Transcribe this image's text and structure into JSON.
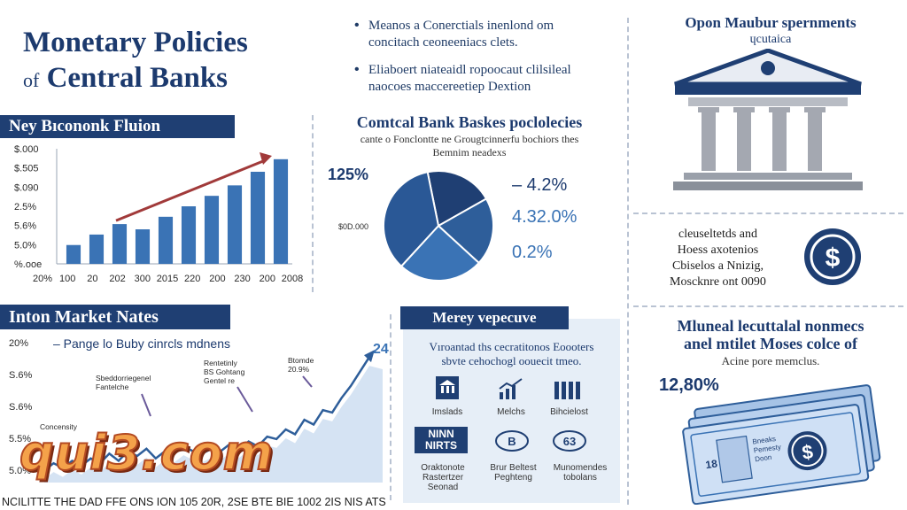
{
  "title": {
    "line1": "Monetary Policies",
    "line2_prefix": "of",
    "line2": "Central Banks"
  },
  "bullets": [
    {
      "line1": "Meanos a Conerctials inenlond om",
      "line2": "concitach ceoneeniacs clets."
    },
    {
      "line1": "Eliaboert niateaidl ropoocaut clilsileal",
      "line2": "naocoes maccereetiep Dextion"
    }
  ],
  "panels": {
    "key_economic": "Ney Bıcononk Fluion",
    "market_rates": "Inton Market Nates",
    "money": "Merey vepecuve",
    "central_policies": "Comtcal Bank Baskes poclolecies",
    "central_sub1": "cante o Fonclontte ne Grougtcinnerfu bochiors thes",
    "central_sub2": "Bemnim neadexs",
    "opon_title1": "Opon Maubur spernments",
    "opon_title2": "ɥcutaica",
    "money_text1": "Vıroantad ths cecratitonos Eoooters",
    "money_text2": "sbvte cehochogl oouecit tmeo.",
    "mlun1": "Mluneal lecuttalal nonmecs",
    "mlun2": "anel mtilet Moses colce of",
    "mlun3": "Acine pore memclus.",
    "stat_12_80": "12,80%",
    "ds1": "cleuseltetds and",
    "ds2": "Hoess axotenios",
    "ds3": "Cbiselos a Nnizig,",
    "ds4": "Moscknre ont 0090"
  },
  "icons": {
    "items": [
      {
        "name": "bank-icon",
        "label": "Imslads"
      },
      {
        "name": "growth-chart-icon",
        "label": "Melchs"
      },
      {
        "name": "bar-chart-icon",
        "label": "Bihcielost"
      },
      {
        "name": "box-label",
        "label": "NINN NIRTS"
      },
      {
        "name": "eye-icon-1",
        "label": "B"
      },
      {
        "name": "eye-icon-2",
        "label": "63"
      }
    ],
    "bottom_labels": [
      {
        "l1": "Oraktonote",
        "l2": "Rastertzer",
        "l3": "Seonad"
      },
      {
        "l1": "Brur Beltest",
        "l2": "Peghteng",
        "l3": ""
      },
      {
        "l1": "Munomendes",
        "l2": "tobolans",
        "l3": ""
      }
    ]
  },
  "money_card": {
    "num": "18",
    "text1": "Bneaks",
    "text2": "Pemesty",
    "text3": "Doon"
  },
  "watermark": "qui3.com",
  "colors": {
    "navy": "#1f3f73",
    "blue": "#3a73b5",
    "light_blue": "#cfe0f2",
    "red_arrow": "#a13a3a"
  },
  "chart_data": [
    {
      "type": "bar",
      "title": "Ney Bıcononk Fluion",
      "y_ticks": [
        "$.000",
        "$.505",
        "$.090",
        "2.5%",
        "5.6%",
        "5.0%",
        "%.ooe"
      ],
      "x_ticks": [
        "20%",
        "100",
        "20",
        "202",
        "300",
        "2015",
        "220",
        "200",
        "230",
        "200",
        "2008"
      ],
      "values": [
        18,
        28,
        38,
        33,
        45,
        55,
        65,
        75,
        88,
        100
      ],
      "ylim": [
        0,
        110
      ],
      "trend_arrow": true
    },
    {
      "type": "pie",
      "title": "Comtcal Bank Baskes poclolecies",
      "left_label": "125%",
      "inner_label": "$0D.000",
      "slices": [
        {
          "value": 20,
          "color": "#1f3f73"
        },
        {
          "value": 20,
          "color": "#2e5e9a"
        },
        {
          "value": 25,
          "color": "#3a73b5"
        },
        {
          "value": 35,
          "color": "#2a5896"
        }
      ],
      "legend": [
        "– 4.2%",
        "4.32.0%",
        "0.2%"
      ]
    },
    {
      "type": "line",
      "title": "Inton Market Nates",
      "subtitle": "– Pange lo Buby cinrcls mdnens",
      "end_label": "24",
      "y_ticks": [
        "20%",
        "S.6%",
        "S.6%",
        "5.5%",
        "5.0%"
      ],
      "x_axis_text": "NCILITTE THE DAD FFE ONS ION 105 20R, 2SE BTE BIE 1002 2IS NIS ATS",
      "values": [
        5,
        8,
        6,
        9,
        7,
        10,
        8,
        12,
        9,
        13,
        11,
        14,
        10,
        13,
        12,
        15,
        13,
        12,
        14,
        13,
        16,
        14,
        17,
        15,
        19,
        18,
        22,
        20,
        26,
        24,
        30,
        29,
        35,
        40,
        46,
        52
      ],
      "annotations": [
        {
          "l1": "Sbeddorriegenel",
          "l2": "Fantelche"
        },
        {
          "l1": "Rentetinly",
          "l2": "BS Gohtang",
          "l3": "Gentel re"
        },
        {
          "l1": "Btomde",
          "l2": "20.9%"
        },
        {
          "l1": "Concensity",
          "l2": ""
        }
      ]
    }
  ]
}
